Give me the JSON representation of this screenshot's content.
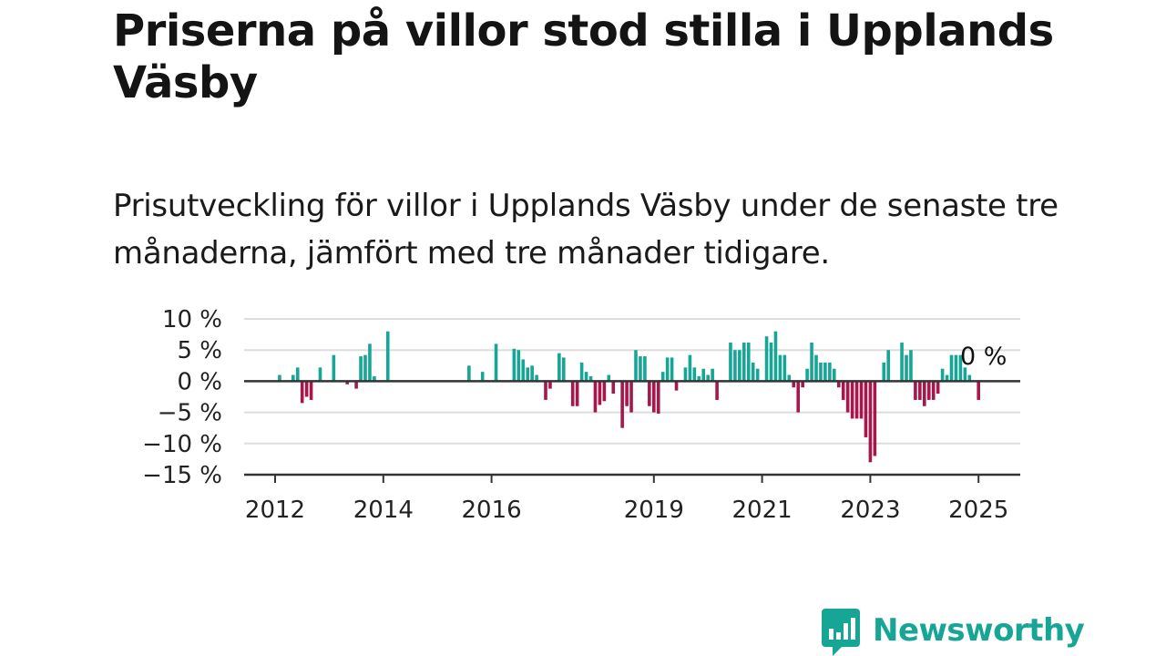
{
  "header": {
    "title": "Priserna på villor stod stilla i Upplands Väsby",
    "subtitle": "Prisutveckling för villor i Upplands Väsby under de senaste tre månaderna, jämfört med tre månader tidigare."
  },
  "brand": {
    "name": "Newsworthy",
    "color": "#17a596"
  },
  "colors": {
    "positive": "#17a596",
    "negative": "#a8174c",
    "axis": "#333333",
    "grid": "#dddddd"
  },
  "chart_data": {
    "type": "bar",
    "title": "",
    "xlabel": "",
    "ylabel": "",
    "ylim": [
      -15,
      10
    ],
    "grid": true,
    "y_ticks": [
      {
        "value": 10,
        "label": "10 %"
      },
      {
        "value": 5,
        "label": "5 %"
      },
      {
        "value": 0,
        "label": "0 %"
      },
      {
        "value": -5,
        "label": "−5 %"
      },
      {
        "value": -10,
        "label": "−10 %"
      },
      {
        "value": -15,
        "label": "−15 %"
      }
    ],
    "x_ticks": [
      {
        "date": "2012-01",
        "label": "2012"
      },
      {
        "date": "2014-01",
        "label": "2014"
      },
      {
        "date": "2016-01",
        "label": "2016"
      },
      {
        "date": "2019-01",
        "label": "2019"
      },
      {
        "date": "2021-01",
        "label": "2021"
      },
      {
        "date": "2023-01",
        "label": "2023"
      },
      {
        "date": "2025-01",
        "label": "2025"
      }
    ],
    "last_value_label": "0 %",
    "series": [
      {
        "values": [
          {
            "date": "2012-02",
            "value": 1
          },
          {
            "date": "2012-05",
            "value": 1
          },
          {
            "date": "2012-06",
            "value": 2.2
          },
          {
            "date": "2012-07",
            "value": -3.5
          },
          {
            "date": "2012-08",
            "value": -2.5
          },
          {
            "date": "2012-09",
            "value": -3
          },
          {
            "date": "2012-11",
            "value": 2.2
          },
          {
            "date": "2013-02",
            "value": 4.2
          },
          {
            "date": "2013-05",
            "value": -0.5
          },
          {
            "date": "2013-07",
            "value": -1.2
          },
          {
            "date": "2013-08",
            "value": 4
          },
          {
            "date": "2013-09",
            "value": 4.2
          },
          {
            "date": "2013-10",
            "value": 6
          },
          {
            "date": "2013-11",
            "value": 0.8
          },
          {
            "date": "2014-02",
            "value": 8
          },
          {
            "date": "2015-08",
            "value": 2.5
          },
          {
            "date": "2015-11",
            "value": 1.5
          },
          {
            "date": "2016-02",
            "value": 6
          },
          {
            "date": "2016-06",
            "value": 5.2
          },
          {
            "date": "2016-07",
            "value": 5
          },
          {
            "date": "2016-08",
            "value": 3.5
          },
          {
            "date": "2016-09",
            "value": 2.2
          },
          {
            "date": "2016-10",
            "value": 2.5
          },
          {
            "date": "2016-11",
            "value": 1
          },
          {
            "date": "2017-01",
            "value": -3
          },
          {
            "date": "2017-02",
            "value": -1.2
          },
          {
            "date": "2017-04",
            "value": 4.5
          },
          {
            "date": "2017-05",
            "value": 3.8
          },
          {
            "date": "2017-07",
            "value": -4
          },
          {
            "date": "2017-08",
            "value": -4
          },
          {
            "date": "2017-09",
            "value": 3
          },
          {
            "date": "2017-10",
            "value": 1.5
          },
          {
            "date": "2017-11",
            "value": 0.8
          },
          {
            "date": "2017-12",
            "value": -5
          },
          {
            "date": "2018-01",
            "value": -3.8
          },
          {
            "date": "2018-02",
            "value": -3.2
          },
          {
            "date": "2018-03",
            "value": 1
          },
          {
            "date": "2018-04",
            "value": -2
          },
          {
            "date": "2018-06",
            "value": -7.5
          },
          {
            "date": "2018-07",
            "value": -4
          },
          {
            "date": "2018-08",
            "value": -5
          },
          {
            "date": "2018-09",
            "value": 5
          },
          {
            "date": "2018-10",
            "value": 4
          },
          {
            "date": "2018-11",
            "value": 4
          },
          {
            "date": "2018-12",
            "value": -4
          },
          {
            "date": "2019-01",
            "value": -5
          },
          {
            "date": "2019-02",
            "value": -5.2
          },
          {
            "date": "2019-03",
            "value": 1.5
          },
          {
            "date": "2019-04",
            "value": 3.8
          },
          {
            "date": "2019-05",
            "value": 3.8
          },
          {
            "date": "2019-06",
            "value": -1.5
          },
          {
            "date": "2019-08",
            "value": 2.2
          },
          {
            "date": "2019-09",
            "value": 4.2
          },
          {
            "date": "2019-10",
            "value": 2.2
          },
          {
            "date": "2019-11",
            "value": 0.8
          },
          {
            "date": "2019-12",
            "value": 2
          },
          {
            "date": "2020-01",
            "value": 1
          },
          {
            "date": "2020-02",
            "value": 2
          },
          {
            "date": "2020-03",
            "value": -3
          },
          {
            "date": "2020-06",
            "value": 6.2
          },
          {
            "date": "2020-07",
            "value": 5
          },
          {
            "date": "2020-08",
            "value": 5
          },
          {
            "date": "2020-09",
            "value": 6.2
          },
          {
            "date": "2020-10",
            "value": 6.2
          },
          {
            "date": "2020-11",
            "value": 3
          },
          {
            "date": "2020-12",
            "value": 2
          },
          {
            "date": "2021-02",
            "value": 7.2
          },
          {
            "date": "2021-03",
            "value": 6.2
          },
          {
            "date": "2021-04",
            "value": 8
          },
          {
            "date": "2021-05",
            "value": 4.2
          },
          {
            "date": "2021-06",
            "value": 4.2
          },
          {
            "date": "2021-07",
            "value": 1
          },
          {
            "date": "2021-08",
            "value": -1
          },
          {
            "date": "2021-09",
            "value": -5
          },
          {
            "date": "2021-10",
            "value": -1
          },
          {
            "date": "2021-11",
            "value": 2
          },
          {
            "date": "2021-12",
            "value": 6.2
          },
          {
            "date": "2022-01",
            "value": 4.2
          },
          {
            "date": "2022-02",
            "value": 3
          },
          {
            "date": "2022-03",
            "value": 3
          },
          {
            "date": "2022-04",
            "value": 3
          },
          {
            "date": "2022-05",
            "value": 2
          },
          {
            "date": "2022-06",
            "value": -1
          },
          {
            "date": "2022-07",
            "value": -3
          },
          {
            "date": "2022-08",
            "value": -5
          },
          {
            "date": "2022-09",
            "value": -6
          },
          {
            "date": "2022-10",
            "value": -6
          },
          {
            "date": "2022-11",
            "value": -6
          },
          {
            "date": "2022-12",
            "value": -9
          },
          {
            "date": "2023-01",
            "value": -13
          },
          {
            "date": "2023-02",
            "value": -12
          },
          {
            "date": "2023-04",
            "value": 3
          },
          {
            "date": "2023-05",
            "value": 5
          },
          {
            "date": "2023-08",
            "value": 6.2
          },
          {
            "date": "2023-09",
            "value": 4.2
          },
          {
            "date": "2023-10",
            "value": 5
          },
          {
            "date": "2023-11",
            "value": -3
          },
          {
            "date": "2023-12",
            "value": -3
          },
          {
            "date": "2024-01",
            "value": -4
          },
          {
            "date": "2024-02",
            "value": -3
          },
          {
            "date": "2024-03",
            "value": -3
          },
          {
            "date": "2024-04",
            "value": -2
          },
          {
            "date": "2024-05",
            "value": 2
          },
          {
            "date": "2024-06",
            "value": 1
          },
          {
            "date": "2024-07",
            "value": 4.2
          },
          {
            "date": "2024-08",
            "value": 4.2
          },
          {
            "date": "2024-09",
            "value": 4.2
          },
          {
            "date": "2024-10",
            "value": 2.2
          },
          {
            "date": "2024-11",
            "value": 1
          },
          {
            "date": "2025-01",
            "value": -3
          },
          {
            "date": "2025-02",
            "value": 0
          }
        ]
      }
    ]
  }
}
